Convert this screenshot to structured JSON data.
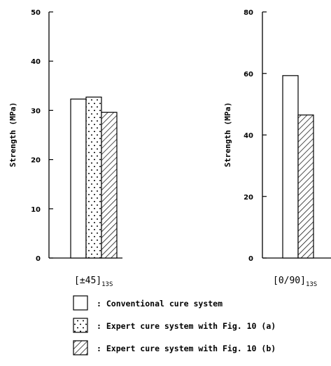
{
  "chart_data": [
    {
      "type": "bar",
      "ylabel": "Strength (MPa)",
      "ylim": [
        0,
        50
      ],
      "yticks": [
        "0",
        "10",
        "20",
        "30",
        "40",
        "50"
      ],
      "category": "[±45]",
      "category_subscript": "13S",
      "series": [
        {
          "name": "Conventional cure system",
          "values": [
            32.3
          ]
        },
        {
          "name": "Expert cure system with Fig. 10 (a)",
          "values": [
            32.7
          ]
        },
        {
          "name": "Expert cure system with Fig. 10 (b)",
          "values": [
            29.6
          ]
        }
      ]
    },
    {
      "type": "bar",
      "ylabel": "Strength (MPa)",
      "ylim": [
        0,
        80
      ],
      "yticks": [
        "0",
        "20",
        "40",
        "60",
        "80"
      ],
      "category": "[0/90]",
      "category_subscript": "13S",
      "series": [
        {
          "name": "Conventional cure system",
          "values": [
            59.3
          ]
        },
        {
          "name": "Expert cure system with Fig. 10 (b)",
          "values": [
            46.5
          ]
        }
      ]
    }
  ],
  "legend": [
    {
      "pattern": "plain",
      "label": ": Conventional cure system"
    },
    {
      "pattern": "dots",
      "label": ": Expert cure system with Fig. 10 (a)"
    },
    {
      "pattern": "hatch",
      "label": ": Expert cure system with Fig. 10 (b)"
    }
  ]
}
